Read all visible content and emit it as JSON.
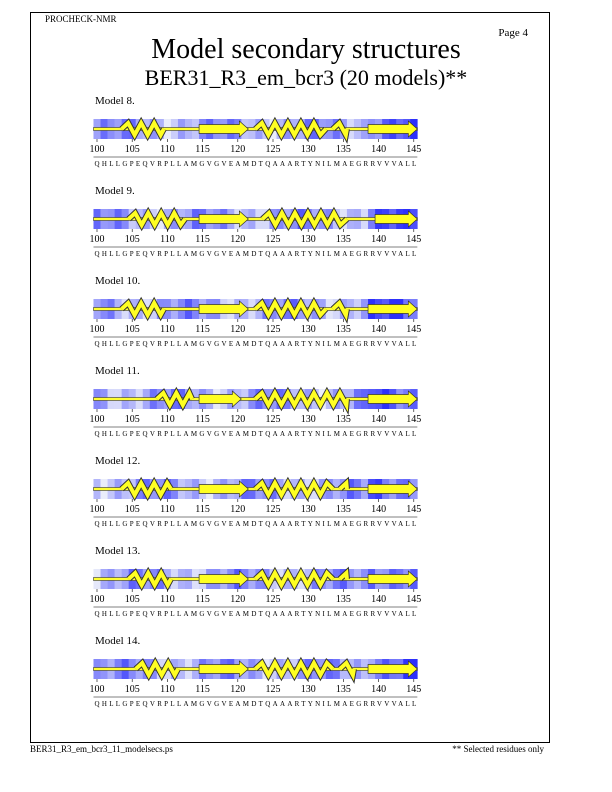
{
  "header": {
    "program": "PROCHECK-NMR",
    "page": "Page  4"
  },
  "title": "Model secondary structures",
  "subtitle": "BER31_R3_em_bcr3 (20 models)**",
  "residue_ticks": [
    100,
    105,
    110,
    115,
    120,
    125,
    130,
    135,
    140,
    145
  ],
  "sequence": "QHLLGPEQVRPLLAMGVGVEAMDTQAAARTYNILMAEGRRVVVALL",
  "models": [
    {
      "label": "Model  8."
    },
    {
      "label": "Model  9."
    },
    {
      "label": "Model 10."
    },
    {
      "label": "Model 11."
    },
    {
      "label": "Model 12."
    },
    {
      "label": "Model 13."
    },
    {
      "label": "Model 14."
    }
  ],
  "footer": {
    "file": "BER31_R3_em_bcr3_11_modelsecs.ps",
    "note": "** Selected residues only"
  }
}
